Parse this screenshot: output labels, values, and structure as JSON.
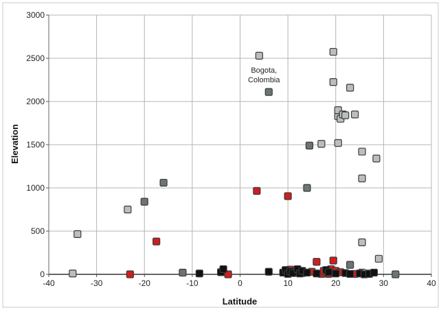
{
  "chart_data": {
    "type": "scatter",
    "title": "",
    "xlabel": "Latitude",
    "ylabel": "Elevation",
    "xlim": [
      -40,
      40
    ],
    "ylim": [
      0,
      3000
    ],
    "xticks": [
      -40,
      -30,
      -20,
      -10,
      0,
      10,
      20,
      30,
      40
    ],
    "yticks": [
      0,
      500,
      1000,
      1500,
      2000,
      2500,
      3000
    ],
    "grid": true,
    "legend": "none",
    "annotations": [
      {
        "lines": [
          "Bogota,",
          "Colombia"
        ],
        "x": 6,
        "y": 2110
      }
    ],
    "series": [
      {
        "color": "#b9bfbe",
        "points": [
          [
            -35,
            10
          ],
          [
            -34,
            465
          ],
          [
            -23.5,
            750
          ],
          [
            4,
            2530
          ],
          [
            17,
            1510
          ],
          [
            19.5,
            2575
          ],
          [
            19.5,
            2225
          ],
          [
            20.5,
            1520
          ],
          [
            20.5,
            1830
          ],
          [
            20.5,
            1900
          ],
          [
            21,
            1800
          ],
          [
            21.5,
            1850
          ],
          [
            22,
            1840
          ],
          [
            23,
            2160
          ],
          [
            24,
            1850
          ],
          [
            25.5,
            1420
          ],
          [
            25.5,
            1110
          ],
          [
            25.5,
            370
          ],
          [
            28.5,
            1340
          ],
          [
            29,
            180
          ],
          [
            25.5,
            20
          ],
          [
            27,
            10
          ]
        ]
      },
      {
        "color": "#6d7573",
        "points": [
          [
            -20,
            840
          ],
          [
            -16,
            1060
          ],
          [
            -12,
            20
          ],
          [
            6,
            2110
          ],
          [
            14,
            1000
          ],
          [
            14.5,
            1490
          ],
          [
            23,
            110
          ],
          [
            32.5,
            0
          ]
        ]
      },
      {
        "color": "#d01e1e",
        "points": [
          [
            -23,
            0
          ],
          [
            -17.5,
            380
          ],
          [
            -2.5,
            0
          ],
          [
            3.5,
            965
          ],
          [
            10,
            905
          ],
          [
            10.5,
            55
          ],
          [
            11.5,
            30
          ],
          [
            12,
            20
          ],
          [
            13,
            15
          ],
          [
            15,
            30
          ],
          [
            16,
            145
          ],
          [
            17,
            5
          ],
          [
            17.5,
            40
          ],
          [
            18.5,
            5
          ],
          [
            19,
            60
          ],
          [
            19.5,
            160
          ],
          [
            20,
            40
          ],
          [
            21,
            25
          ],
          [
            24,
            5
          ]
        ]
      },
      {
        "color": "#111111",
        "points": [
          [
            -8.5,
            10
          ],
          [
            -4,
            25
          ],
          [
            -3.5,
            60
          ],
          [
            6,
            30
          ],
          [
            9,
            20
          ],
          [
            9.5,
            50
          ],
          [
            10,
            5
          ],
          [
            10.5,
            35
          ],
          [
            11,
            15
          ],
          [
            12,
            60
          ],
          [
            12.5,
            10
          ],
          [
            13,
            40
          ],
          [
            14,
            20
          ],
          [
            16,
            10
          ],
          [
            18,
            50
          ],
          [
            18.5,
            25
          ],
          [
            20,
            10
          ],
          [
            22,
            15
          ],
          [
            23,
            5
          ],
          [
            25,
            10
          ],
          [
            26,
            0
          ],
          [
            27,
            5
          ],
          [
            28,
            20
          ]
        ]
      }
    ]
  }
}
